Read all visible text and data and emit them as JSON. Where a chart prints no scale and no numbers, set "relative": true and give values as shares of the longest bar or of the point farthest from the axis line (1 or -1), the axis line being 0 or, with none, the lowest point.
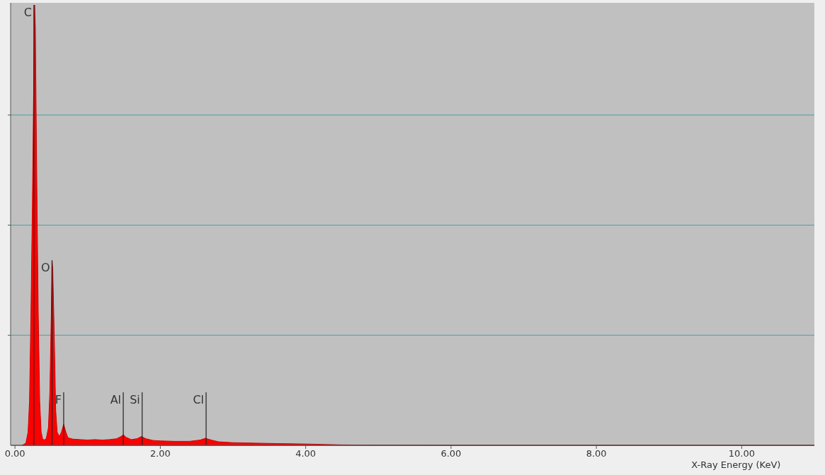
{
  "chart_data": {
    "type": "area",
    "relative": true,
    "xlabel": "X-Ray Energy (KeV)",
    "x": [
      0.1,
      0.15,
      0.18,
      0.2,
      0.22,
      0.24,
      0.26,
      0.27,
      0.28,
      0.3,
      0.32,
      0.34,
      0.36,
      0.38,
      0.4,
      0.43,
      0.46,
      0.48,
      0.5,
      0.51,
      0.52,
      0.54,
      0.56,
      0.58,
      0.61,
      0.64,
      0.67,
      0.7,
      0.73,
      0.8,
      0.9,
      1.0,
      1.1,
      1.2,
      1.3,
      1.4,
      1.46,
      1.49,
      1.53,
      1.6,
      1.68,
      1.74,
      1.8,
      1.9,
      2.0,
      2.2,
      2.4,
      2.55,
      2.62,
      2.7,
      2.8,
      3.0,
      3.3,
      3.6,
      4.0,
      4.5,
      5.0,
      6.0,
      8.0,
      11.0
    ],
    "series": [
      {
        "color": "#ff0000",
        "values": [
          0,
          0.005,
          0.03,
          0.1,
          0.3,
          0.55,
          0.85,
          1.0,
          0.95,
          0.6,
          0.3,
          0.1,
          0.03,
          0.015,
          0.012,
          0.015,
          0.04,
          0.12,
          0.3,
          0.42,
          0.4,
          0.25,
          0.08,
          0.03,
          0.02,
          0.03,
          0.048,
          0.03,
          0.017,
          0.014,
          0.013,
          0.012,
          0.013,
          0.012,
          0.013,
          0.015,
          0.02,
          0.024,
          0.018,
          0.013,
          0.015,
          0.02,
          0.015,
          0.011,
          0.01,
          0.009,
          0.009,
          0.012,
          0.016,
          0.012,
          0.008,
          0.006,
          0.005,
          0.004,
          0.003,
          0.001,
          0.0005,
          0,
          0,
          0
        ]
      }
    ],
    "xlim": [
      -0.06,
      11.0
    ],
    "xticks": [
      {
        "value": 0,
        "label": "0.00"
      },
      {
        "value": 2,
        "label": "2.00"
      },
      {
        "value": 4,
        "label": "4.00"
      },
      {
        "value": 6,
        "label": "6.00"
      },
      {
        "value": 8,
        "label": "8.00"
      },
      {
        "value": 10,
        "label": "10.00"
      }
    ],
    "ref_lines": [
      {
        "axis": "x",
        "value": 0.26,
        "label": "C"
      },
      {
        "axis": "x",
        "value": 0.51,
        "label": "O"
      },
      {
        "axis": "x",
        "value": 0.67,
        "label": "F"
      },
      {
        "axis": "x",
        "value": 1.49,
        "label": "Al"
      },
      {
        "axis": "x",
        "value": 1.75,
        "label": "Si"
      },
      {
        "axis": "x",
        "value": 2.63,
        "label": "Cl"
      },
      {
        "axis": "y",
        "value": 0.25,
        "color": "#4f9ea0"
      },
      {
        "axis": "y",
        "value": 0.5,
        "color": "#4f9ea0"
      },
      {
        "axis": "y",
        "value": 0.75,
        "color": "#4f9ea0"
      }
    ]
  }
}
